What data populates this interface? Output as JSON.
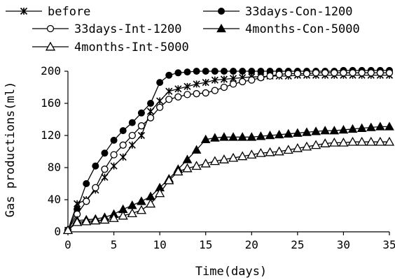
{
  "chart_data": {
    "type": "line",
    "xlabel": "Time(days)",
    "ylabel": "Gas productions(ml)",
    "xlim": [
      0,
      35
    ],
    "ylim": [
      0,
      200
    ],
    "xticks": [
      0,
      5,
      10,
      15,
      20,
      25,
      30,
      35
    ],
    "yticks": [
      0,
      40,
      80,
      120,
      160,
      200
    ],
    "grid": false,
    "legend_position": "top",
    "series": [
      {
        "name": "before",
        "marker": "asterisk",
        "x": [
          0,
          1,
          2,
          3,
          4,
          5,
          6,
          7,
          8,
          9,
          10,
          11,
          12,
          13,
          14,
          15,
          16,
          17,
          18,
          19,
          20,
          21,
          22,
          23,
          24,
          25,
          26,
          27,
          28,
          29,
          30,
          31,
          32,
          33,
          34,
          35
        ],
        "y": [
          2,
          35,
          40,
          52,
          68,
          82,
          93,
          108,
          120,
          150,
          163,
          175,
          178,
          181,
          184,
          186,
          189,
          190,
          191,
          192,
          193,
          193,
          194,
          194,
          194,
          195,
          195,
          195,
          195,
          195,
          195,
          195,
          195,
          195,
          195,
          195
        ]
      },
      {
        "name": "33days-Con-1200",
        "marker": "filled-circle",
        "x": [
          0,
          1,
          2,
          3,
          4,
          5,
          6,
          7,
          8,
          9,
          10,
          11,
          12,
          13,
          14,
          15,
          16,
          17,
          18,
          19,
          20,
          21,
          22,
          23,
          24,
          25,
          26,
          27,
          28,
          29,
          30,
          31,
          32,
          33,
          34,
          35
        ],
        "y": [
          2,
          28,
          60,
          82,
          98,
          114,
          126,
          136,
          148,
          160,
          186,
          195,
          198,
          199,
          200,
          200,
          200,
          200,
          200,
          200,
          200,
          200,
          200,
          200,
          200,
          200,
          200,
          200,
          200,
          200,
          201,
          201,
          201,
          201,
          201,
          201
        ]
      },
      {
        "name": "33days-Int-1200",
        "marker": "open-circle",
        "x": [
          0,
          1,
          2,
          3,
          4,
          5,
          6,
          7,
          8,
          9,
          10,
          11,
          12,
          13,
          14,
          15,
          16,
          17,
          18,
          19,
          20,
          21,
          22,
          23,
          24,
          25,
          26,
          27,
          28,
          29,
          30,
          31,
          32,
          33,
          34,
          35
        ],
        "y": [
          2,
          22,
          38,
          55,
          78,
          96,
          108,
          120,
          132,
          142,
          155,
          165,
          168,
          171,
          172,
          173,
          176,
          180,
          184,
          187,
          189,
          192,
          194,
          196,
          197,
          197,
          197,
          198,
          198,
          198,
          198,
          198,
          198,
          198,
          198,
          198
        ]
      },
      {
        "name": "4months-Con-5000",
        "marker": "filled-triangle",
        "x": [
          0,
          1,
          2,
          3,
          4,
          5,
          6,
          7,
          8,
          9,
          10,
          11,
          12,
          13,
          14,
          15,
          16,
          17,
          18,
          19,
          20,
          21,
          22,
          23,
          24,
          25,
          26,
          27,
          28,
          29,
          30,
          31,
          32,
          33,
          34,
          35
        ],
        "y": [
          2,
          14,
          15,
          16,
          18,
          22,
          28,
          33,
          38,
          44,
          55,
          66,
          78,
          90,
          102,
          115,
          117,
          118,
          118,
          118,
          118,
          119,
          120,
          121,
          122,
          123,
          124,
          125,
          126,
          126,
          127,
          128,
          129,
          130,
          131,
          131
        ]
      },
      {
        "name": "4months-Int-5000",
        "marker": "open-triangle",
        "x": [
          0,
          1,
          2,
          3,
          4,
          5,
          6,
          7,
          8,
          9,
          10,
          11,
          12,
          13,
          14,
          15,
          16,
          17,
          18,
          19,
          20,
          21,
          22,
          23,
          24,
          25,
          26,
          27,
          28,
          29,
          30,
          31,
          32,
          33,
          34,
          35
        ],
        "y": [
          2,
          12,
          13,
          14,
          15,
          17,
          20,
          23,
          27,
          35,
          48,
          64,
          75,
          79,
          82,
          85,
          88,
          90,
          92,
          94,
          96,
          98,
          99,
          100,
          102,
          104,
          106,
          108,
          110,
          111,
          111,
          112,
          112,
          112,
          112,
          112
        ]
      }
    ]
  }
}
